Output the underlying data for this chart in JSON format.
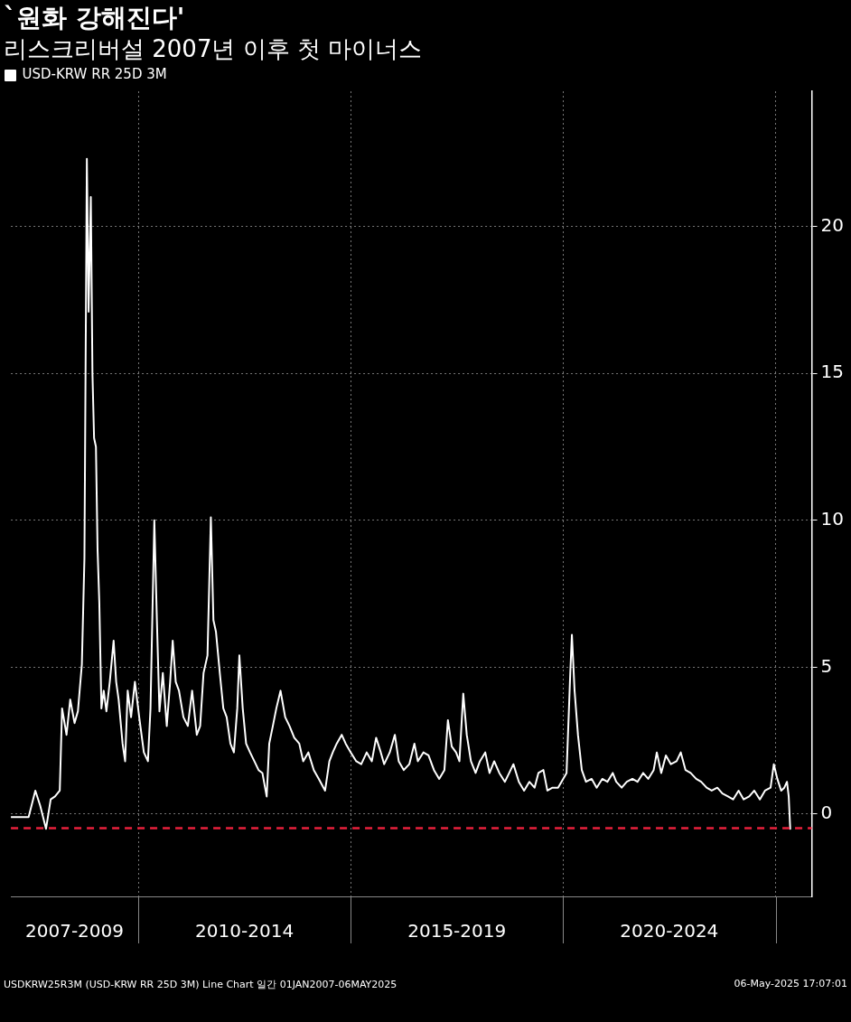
{
  "chart_data": {
    "type": "line",
    "title": "`원화 강해진다'",
    "subtitle": "리스크리버설 2007년 이후 첫 마이너스",
    "series": [
      {
        "name": "USD-KRW RR 25D 3M",
        "color": "#ffffff",
        "x": [
          "2007-01-01",
          "2007-03-16",
          "2007-06-02",
          "2007-07-30",
          "2007-09-09",
          "2007-10-30",
          "2007-12-09",
          "2008-01-15",
          "2008-02-25",
          "2008-03-16",
          "2008-04-23",
          "2008-05-25",
          "2008-07-01",
          "2008-07-30",
          "2008-09-02",
          "2008-09-24",
          "2008-10-15",
          "2008-10-30",
          "2008-11-18",
          "2008-12-02",
          "2008-12-16",
          "2009-01-01",
          "2009-01-15",
          "2009-01-30",
          "2009-02-17",
          "2009-03-09",
          "2009-04-01",
          "2009-04-30",
          "2009-06-02",
          "2009-06-24",
          "2009-07-15",
          "2009-08-18",
          "2009-09-09",
          "2009-10-01",
          "2009-10-30",
          "2009-12-02",
          "2010-01-08",
          "2010-02-17",
          "2010-03-24",
          "2010-04-15",
          "2010-05-18",
          "2010-06-09",
          "2010-07-01",
          "2010-07-30",
          "2010-09-02",
          "2010-10-01",
          "2010-10-23",
          "2010-11-18",
          "2010-12-16",
          "2011-01-23",
          "2011-03-02",
          "2011-04-08",
          "2011-05-18",
          "2011-06-16",
          "2011-07-15",
          "2011-08-18",
          "2011-09-16",
          "2011-10-08",
          "2011-10-30",
          "2011-12-02",
          "2012-01-01",
          "2012-01-30",
          "2012-03-02",
          "2012-04-01",
          "2012-04-30",
          "2012-05-18",
          "2012-06-16",
          "2012-07-15",
          "2012-08-18",
          "2012-09-24",
          "2012-10-30",
          "2012-12-02",
          "2013-01-08",
          "2013-01-30",
          "2013-03-02",
          "2013-04-01",
          "2013-05-07",
          "2013-06-16",
          "2013-07-23",
          "2013-09-02",
          "2013-10-15",
          "2013-11-18",
          "2014-01-01",
          "2014-02-17",
          "2014-04-01",
          "2014-05-25",
          "2014-07-01",
          "2014-07-30",
          "2014-09-02",
          "2014-10-15",
          "2014-11-18",
          "2015-01-01",
          "2015-02-17",
          "2015-04-01",
          "2015-05-18",
          "2015-07-01",
          "2015-08-07",
          "2015-09-16",
          "2015-10-15",
          "2015-12-02",
          "2016-01-15",
          "2016-02-17",
          "2016-04-01",
          "2016-05-18",
          "2016-07-01",
          "2016-07-30",
          "2016-09-16",
          "2016-10-30",
          "2016-12-16",
          "2017-01-30",
          "2017-03-16",
          "2017-04-15",
          "2017-05-18",
          "2017-06-24",
          "2017-07-23",
          "2017-08-25",
          "2017-09-24",
          "2017-10-30",
          "2017-12-09",
          "2018-01-15",
          "2018-03-02",
          "2018-04-08",
          "2018-05-18",
          "2018-07-01",
          "2018-08-18",
          "2018-09-24",
          "2018-10-30",
          "2018-12-16",
          "2019-01-30",
          "2019-03-16",
          "2019-04-30",
          "2019-06-02",
          "2019-07-15",
          "2019-08-18",
          "2019-10-01",
          "2019-11-18",
          "2020-01-01",
          "2020-01-30",
          "2020-03-02",
          "2020-03-16",
          "2020-04-08",
          "2020-05-07",
          "2020-06-09",
          "2020-07-15",
          "2020-09-02",
          "2020-10-15",
          "2020-12-02",
          "2021-01-15",
          "2021-03-02",
          "2021-04-01",
          "2021-05-18",
          "2021-07-01",
          "2021-08-18",
          "2021-10-01",
          "2021-11-18",
          "2022-01-01",
          "2022-02-17",
          "2022-03-16",
          "2022-04-23",
          "2022-06-02",
          "2022-07-15",
          "2022-09-02",
          "2022-10-08",
          "2022-11-18",
          "2023-01-01",
          "2023-02-17",
          "2023-04-01",
          "2023-05-18",
          "2023-07-01",
          "2023-08-18",
          "2023-10-01",
          "2023-11-18",
          "2024-01-01",
          "2024-02-17",
          "2024-04-01",
          "2024-05-18",
          "2024-07-01",
          "2024-08-18",
          "2024-10-01",
          "2024-11-18",
          "2024-12-16",
          "2025-01-15",
          "2025-02-17",
          "2025-03-16",
          "2025-04-08",
          "2025-04-23",
          "2025-05-06"
        ],
        "values": [
          -0.1,
          -0.1,
          -0.1,
          0.8,
          0.3,
          -0.5,
          0.5,
          0.6,
          0.8,
          3.6,
          2.7,
          3.9,
          3.1,
          3.5,
          5.1,
          8.7,
          22.3,
          17.1,
          21.0,
          15.0,
          12.8,
          12.5,
          9.0,
          7.2,
          3.6,
          4.2,
          3.5,
          4.5,
          5.9,
          4.5,
          3.9,
          2.4,
          1.8,
          4.2,
          3.3,
          4.5,
          3.3,
          2.1,
          1.8,
          3.6,
          10.0,
          6.6,
          3.5,
          4.8,
          3.0,
          4.5,
          5.9,
          4.5,
          4.2,
          3.3,
          3.0,
          4.2,
          2.7,
          3.0,
          4.8,
          5.4,
          10.1,
          6.6,
          6.2,
          4.8,
          3.6,
          3.3,
          2.4,
          2.1,
          3.6,
          5.4,
          3.6,
          2.4,
          2.1,
          1.8,
          1.5,
          1.4,
          0.6,
          2.4,
          3.0,
          3.6,
          4.2,
          3.3,
          3.0,
          2.6,
          2.4,
          1.8,
          2.1,
          1.5,
          1.2,
          0.8,
          1.8,
          2.1,
          2.4,
          2.7,
          2.4,
          2.1,
          1.8,
          1.7,
          2.1,
          1.8,
          2.6,
          2.1,
          1.7,
          2.1,
          2.7,
          1.8,
          1.5,
          1.7,
          2.4,
          1.8,
          2.1,
          2.0,
          1.5,
          1.2,
          1.5,
          3.2,
          2.3,
          2.1,
          1.8,
          4.1,
          2.7,
          1.8,
          1.4,
          1.8,
          2.1,
          1.4,
          1.8,
          1.4,
          1.1,
          1.4,
          1.7,
          1.1,
          0.8,
          1.1,
          0.9,
          1.4,
          1.5,
          0.8,
          0.9,
          0.9,
          1.2,
          1.4,
          4.8,
          6.1,
          4.2,
          2.7,
          1.5,
          1.1,
          1.2,
          0.9,
          1.2,
          1.1,
          1.4,
          1.1,
          0.9,
          1.1,
          1.2,
          1.1,
          1.4,
          1.2,
          1.5,
          2.1,
          1.4,
          2.0,
          1.7,
          1.8,
          2.1,
          1.5,
          1.4,
          1.2,
          1.1,
          0.9,
          0.8,
          0.9,
          0.7,
          0.6,
          0.5,
          0.8,
          0.5,
          0.6,
          0.8,
          0.5,
          0.8,
          0.9,
          1.7,
          1.2,
          0.8,
          0.9,
          1.1,
          0.6,
          -0.5
        ]
      }
    ],
    "xlim": [
      "2007-01-01",
      "2025-11-07"
    ],
    "xticks": [
      {
        "value": "2008-07-01",
        "label": "2007-2009"
      },
      {
        "value": "2010-01-01",
        "label": null
      },
      {
        "value": "2012-07-01",
        "label": "2010-2014"
      },
      {
        "value": "2015-01-01",
        "label": null
      },
      {
        "value": "2017-07-01",
        "label": "2015-2019"
      },
      {
        "value": "2020-01-01",
        "label": null
      },
      {
        "value": "2022-07-01",
        "label": "2020-2024"
      },
      {
        "value": "2025-01-01",
        "label": null
      }
    ],
    "ylim": [
      -2.8,
      24.6
    ],
    "yticks": [
      0,
      5,
      10,
      15,
      20
    ],
    "ref_lines": [
      {
        "axis": "y",
        "value": -0.48,
        "color": "#e8203c",
        "line_style": "dashed"
      }
    ],
    "grid": true,
    "legend": "top left",
    "marker": "none",
    "line_style": "solid",
    "annotations": [
      "USDKRW25R3M (USD-KRW RR 25D 3M) Line Chart 일간 01JAN2007-06MAY2025",
      "06-May-2025 17:07:01"
    ]
  }
}
